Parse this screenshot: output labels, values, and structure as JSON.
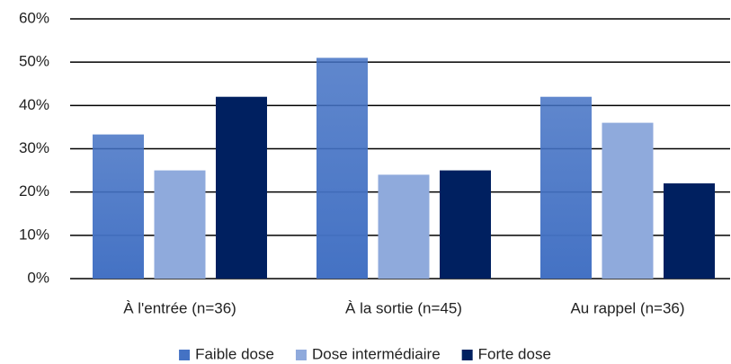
{
  "chart_data": {
    "type": "bar",
    "categories": [
      "À l'entrée (n=36)",
      "À la sortie (n=45)",
      "Au rappel (n=36)"
    ],
    "series": [
      {
        "name": "Faible dose",
        "color": "#4472c4",
        "values": [
          33.3,
          51,
          42
        ]
      },
      {
        "name": "Dose intermédiaire",
        "color": "#8faadc",
        "values": [
          25,
          24,
          36
        ]
      },
      {
        "name": "Forte dose",
        "color": "#002060",
        "values": [
          42,
          25,
          22
        ]
      }
    ],
    "ylim": [
      0,
      60
    ],
    "yticks": [
      {
        "value": 0,
        "label": "0%"
      },
      {
        "value": 10,
        "label": "10%"
      },
      {
        "value": 20,
        "label": "20%"
      },
      {
        "value": 30,
        "label": "30%"
      },
      {
        "value": 40,
        "label": "40%"
      },
      {
        "value": 50,
        "label": "50%"
      },
      {
        "value": 60,
        "label": "60%"
      }
    ],
    "grid": true,
    "legend": "bottom"
  }
}
